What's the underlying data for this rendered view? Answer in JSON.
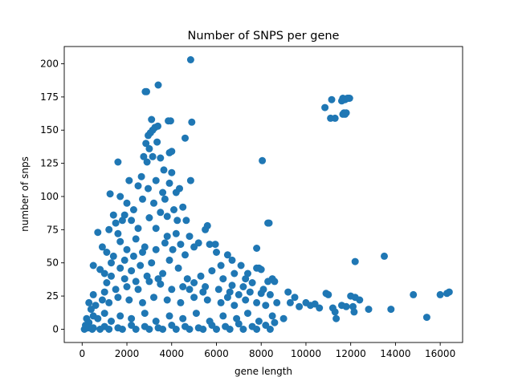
{
  "chart_data": {
    "type": "scatter",
    "title": "Number of SNPS per gene",
    "xlabel": "gene length",
    "ylabel": "number of snps",
    "xlim": [
      -800,
      17000
    ],
    "ylim": [
      -10,
      213
    ],
    "xticks": [
      0,
      2000,
      4000,
      6000,
      8000,
      10000,
      12000,
      14000,
      16000
    ],
    "yticks": [
      0,
      25,
      50,
      75,
      100,
      125,
      150,
      175,
      200
    ],
    "grid": false,
    "legend": "none",
    "color": "#1f77b4",
    "points": [
      [
        4850,
        203
      ],
      [
        2880,
        179
      ],
      [
        3400,
        184
      ],
      [
        2820,
        179
      ],
      [
        3100,
        158
      ],
      [
        3250,
        152
      ],
      [
        3380,
        153
      ],
      [
        3850,
        157
      ],
      [
        3950,
        157
      ],
      [
        4900,
        156
      ],
      [
        3050,
        148
      ],
      [
        2950,
        146
      ],
      [
        3150,
        150
      ],
      [
        4600,
        144
      ],
      [
        3350,
        141
      ],
      [
        2850,
        140
      ],
      [
        3000,
        136
      ],
      [
        3900,
        133
      ],
      [
        4000,
        134
      ],
      [
        1600,
        126
      ],
      [
        2750,
        130
      ],
      [
        3150,
        130
      ],
      [
        3500,
        129
      ],
      [
        2900,
        126
      ],
      [
        4850,
        112
      ],
      [
        2100,
        112
      ],
      [
        2650,
        115
      ],
      [
        3650,
        120
      ],
      [
        4000,
        118
      ],
      [
        3300,
        112
      ],
      [
        3900,
        110
      ],
      [
        1250,
        102
      ],
      [
        1700,
        100
      ],
      [
        2500,
        108
      ],
      [
        2950,
        106
      ],
      [
        3600,
        103
      ],
      [
        4350,
        106
      ],
      [
        4200,
        103
      ],
      [
        3700,
        98
      ],
      [
        4500,
        92
      ],
      [
        2000,
        95
      ],
      [
        1900,
        86
      ],
      [
        2700,
        98
      ],
      [
        3200,
        95
      ],
      [
        1400,
        86
      ],
      [
        2300,
        90
      ],
      [
        4100,
        90
      ],
      [
        3800,
        85
      ],
      [
        4650,
        82
      ],
      [
        1500,
        80
      ],
      [
        1800,
        82
      ],
      [
        2200,
        82
      ],
      [
        3000,
        84
      ],
      [
        3500,
        88
      ],
      [
        4250,
        82
      ],
      [
        700,
        73
      ],
      [
        1200,
        75
      ],
      [
        1600,
        72
      ],
      [
        2500,
        76
      ],
      [
        3300,
        76
      ],
      [
        4800,
        70
      ],
      [
        5600,
        78
      ],
      [
        5500,
        75
      ],
      [
        5200,
        65
      ],
      [
        5700,
        64
      ],
      [
        6000,
        58
      ],
      [
        6500,
        56
      ],
      [
        5950,
        64
      ],
      [
        6700,
        52
      ],
      [
        6200,
        48
      ],
      [
        5000,
        62
      ],
      [
        4400,
        64
      ],
      [
        4050,
        60
      ],
      [
        3700,
        65
      ],
      [
        2800,
        62
      ],
      [
        2000,
        60
      ],
      [
        900,
        62
      ],
      [
        1100,
        58
      ],
      [
        1400,
        55
      ],
      [
        500,
        48
      ],
      [
        800,
        45
      ],
      [
        1000,
        42
      ],
      [
        1300,
        40
      ],
      [
        1700,
        46
      ],
      [
        2200,
        44
      ],
      [
        2600,
        48
      ],
      [
        3100,
        50
      ],
      [
        3600,
        42
      ],
      [
        4300,
        46
      ],
      [
        4700,
        38
      ],
      [
        5300,
        40
      ],
      [
        5800,
        44
      ],
      [
        6300,
        38
      ],
      [
        6800,
        42
      ],
      [
        7100,
        48
      ],
      [
        7400,
        42
      ],
      [
        7800,
        46
      ],
      [
        7900,
        46
      ],
      [
        8500,
        38
      ],
      [
        8300,
        36
      ],
      [
        7600,
        35
      ],
      [
        7200,
        32
      ],
      [
        6600,
        28
      ],
      [
        6100,
        30
      ],
      [
        5500,
        32
      ],
      [
        5000,
        35
      ],
      [
        4500,
        32
      ],
      [
        4000,
        30
      ],
      [
        3500,
        34
      ],
      [
        3000,
        36
      ],
      [
        2500,
        30
      ],
      [
        2000,
        32
      ],
      [
        1500,
        30
      ],
      [
        1000,
        28
      ],
      [
        500,
        26
      ],
      [
        300,
        20
      ],
      [
        400,
        15
      ],
      [
        600,
        18
      ],
      [
        900,
        22
      ],
      [
        1200,
        20
      ],
      [
        1600,
        24
      ],
      [
        2100,
        22
      ],
      [
        2700,
        20
      ],
      [
        3200,
        24
      ],
      [
        3800,
        22
      ],
      [
        4400,
        20
      ],
      [
        5000,
        24
      ],
      [
        5600,
        22
      ],
      [
        6200,
        20
      ],
      [
        6800,
        18
      ],
      [
        7300,
        22
      ],
      [
        7800,
        20
      ],
      [
        8200,
        18
      ],
      [
        8700,
        20
      ],
      [
        8400,
        26
      ],
      [
        8000,
        27
      ],
      [
        7500,
        28
      ],
      [
        7000,
        26
      ],
      [
        6500,
        24
      ],
      [
        200,
        8
      ],
      [
        300,
        5
      ],
      [
        500,
        10
      ],
      [
        700,
        8
      ],
      [
        1000,
        12
      ],
      [
        1300,
        6
      ],
      [
        1700,
        10
      ],
      [
        2200,
        8
      ],
      [
        2800,
        12
      ],
      [
        3300,
        6
      ],
      [
        3900,
        10
      ],
      [
        4500,
        8
      ],
      [
        5100,
        12
      ],
      [
        5700,
        6
      ],
      [
        6300,
        10
      ],
      [
        6900,
        8
      ],
      [
        7400,
        12
      ],
      [
        7900,
        6
      ],
      [
        8500,
        10
      ],
      [
        8600,
        5
      ],
      [
        9000,
        8
      ],
      [
        8200,
        3
      ],
      [
        7600,
        2
      ],
      [
        7000,
        4
      ],
      [
        6400,
        2
      ],
      [
        5800,
        3
      ],
      [
        5200,
        1
      ],
      [
        4600,
        2
      ],
      [
        4000,
        3
      ],
      [
        3400,
        1
      ],
      [
        2800,
        2
      ],
      [
        2200,
        3
      ],
      [
        1600,
        1
      ],
      [
        1000,
        2
      ],
      [
        500,
        1
      ],
      [
        100,
        0
      ],
      [
        150,
        3
      ],
      [
        250,
        1
      ],
      [
        450,
        0
      ],
      [
        800,
        0
      ],
      [
        1200,
        0
      ],
      [
        1800,
        0
      ],
      [
        2400,
        0
      ],
      [
        3000,
        0
      ],
      [
        3600,
        0
      ],
      [
        4200,
        0
      ],
      [
        4800,
        0
      ],
      [
        5400,
        0
      ],
      [
        6000,
        0
      ],
      [
        6600,
        0
      ],
      [
        7200,
        0
      ],
      [
        7800,
        0
      ],
      [
        8400,
        0
      ],
      [
        1100,
        35
      ],
      [
        1900,
        38
      ],
      [
        2400,
        36
      ],
      [
        2900,
        40
      ],
      [
        3400,
        38
      ],
      [
        4800,
        30
      ],
      [
        5400,
        28
      ],
      [
        6700,
        33
      ],
      [
        7300,
        38
      ],
      [
        8100,
        30
      ],
      [
        1300,
        50
      ],
      [
        1900,
        52
      ],
      [
        2300,
        55
      ],
      [
        2700,
        58
      ],
      [
        3300,
        60
      ],
      [
        3900,
        52
      ],
      [
        4600,
        56
      ],
      [
        4200,
        72
      ],
      [
        3800,
        70
      ],
      [
        2400,
        68
      ],
      [
        1700,
        66
      ],
      [
        8050,
        127
      ],
      [
        8300,
        80
      ],
      [
        8350,
        80
      ],
      [
        7800,
        61
      ],
      [
        8000,
        45
      ],
      [
        8600,
        36
      ],
      [
        9200,
        28
      ],
      [
        9300,
        20
      ],
      [
        9500,
        24
      ],
      [
        9700,
        17
      ],
      [
        10000,
        20
      ],
      [
        10200,
        18
      ],
      [
        10400,
        19
      ],
      [
        10600,
        16
      ],
      [
        10900,
        27
      ],
      [
        11000,
        26
      ],
      [
        11200,
        16
      ],
      [
        11300,
        13
      ],
      [
        11350,
        8
      ],
      [
        11600,
        18
      ],
      [
        11800,
        17
      ],
      [
        12000,
        25
      ],
      [
        12100,
        17
      ],
      [
        12150,
        13
      ],
      [
        12200,
        24
      ],
      [
        12400,
        22
      ],
      [
        12800,
        15
      ],
      [
        13500,
        55
      ],
      [
        13800,
        15
      ],
      [
        14800,
        26
      ],
      [
        15400,
        9
      ],
      [
        16000,
        26
      ],
      [
        16300,
        27
      ],
      [
        16400,
        28
      ],
      [
        12200,
        51
      ],
      [
        10850,
        167
      ],
      [
        11150,
        173
      ],
      [
        11100,
        159
      ],
      [
        11300,
        159
      ],
      [
        11600,
        172
      ],
      [
        11650,
        174
      ],
      [
        11750,
        173
      ],
      [
        11850,
        174
      ],
      [
        11900,
        174
      ],
      [
        11950,
        174
      ],
      [
        11650,
        162
      ],
      [
        11700,
        163
      ],
      [
        11750,
        162
      ],
      [
        11800,
        163
      ]
    ]
  }
}
